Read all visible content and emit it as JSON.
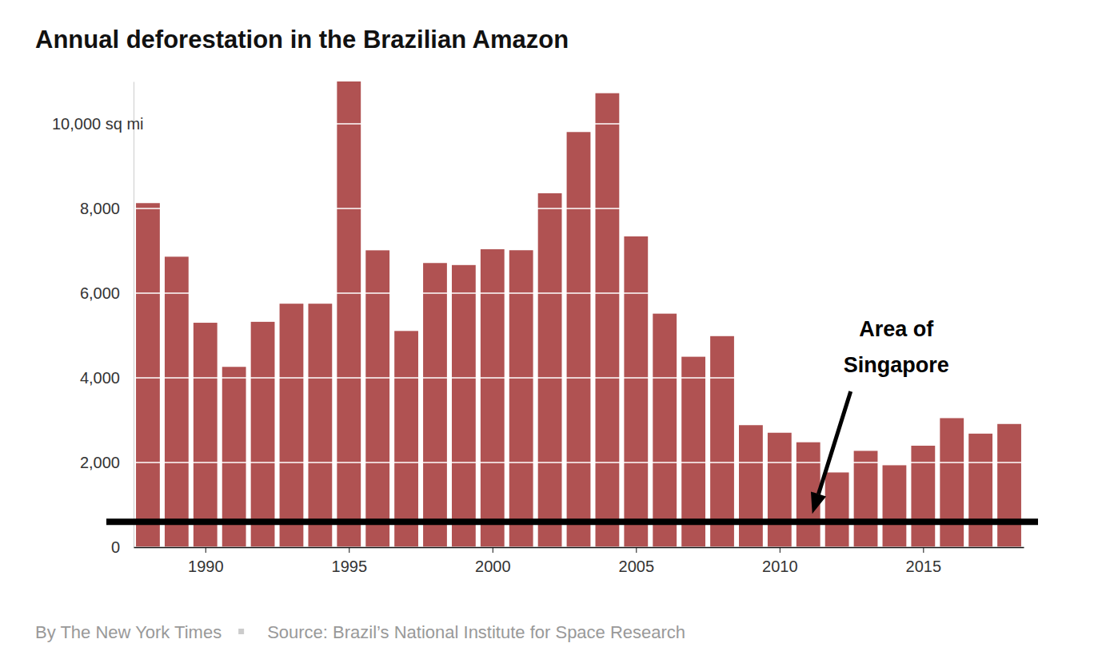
{
  "chart_data": {
    "type": "bar",
    "title": "Annual deforestation in the Brazilian Amazon",
    "byline": "By The New York Times",
    "source": "Source: Brazil’s National Institute for Space Research",
    "x": [
      1988,
      1989,
      1990,
      1991,
      1992,
      1993,
      1994,
      1995,
      1996,
      1997,
      1998,
      1999,
      2000,
      2001,
      2002,
      2003,
      2004,
      2005,
      2006,
      2007,
      2008,
      2009,
      2010,
      2011,
      2012,
      2013,
      2014,
      2015,
      2016,
      2017,
      2018
    ],
    "values": [
      8127,
      6861,
      5301,
      4259,
      5323,
      5751,
      5751,
      11000,
      7012,
      5107,
      6712,
      6664,
      7037,
      7014,
      8360,
      9806,
      10723,
      7341,
      5516,
      4498,
      4985,
      2882,
      2703,
      2478,
      1765,
      2275,
      1935,
      2397,
      3048,
      2682,
      2910
    ],
    "color": "#b05252",
    "xlim": [
      1987.5,
      2018.5
    ],
    "xticks": [
      1990,
      1995,
      2000,
      2005,
      2010,
      2015
    ],
    "ylim": [
      0,
      11000
    ],
    "yticks": [
      0,
      {
        "value": 2000,
        "label": "2,000"
      },
      {
        "value": 4000,
        "label": "4,000"
      },
      {
        "value": 6000,
        "label": "6,000"
      },
      {
        "value": 8000,
        "label": "8,000"
      },
      {
        "value": 10000,
        "label": "10,000 sq mi"
      }
    ],
    "grid": true,
    "annotations": [
      {
        "lines": [
          "Area of",
          "Singapore"
        ],
        "x": 2011,
        "y": 600
      }
    ]
  }
}
